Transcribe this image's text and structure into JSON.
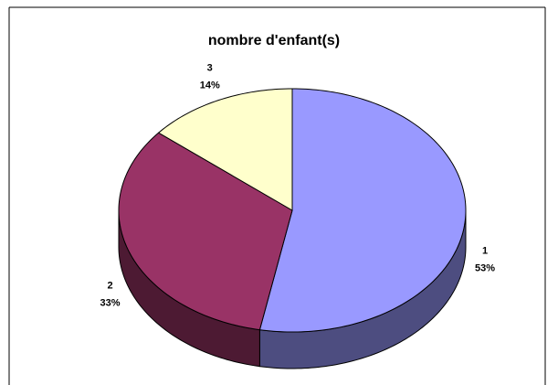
{
  "chart_data": {
    "type": "pie",
    "title": "nombre d'enfant(s)",
    "categories": [
      "1",
      "2",
      "3"
    ],
    "values": [
      53,
      33,
      14
    ],
    "value_labels": [
      "53%",
      "33%",
      "14%"
    ],
    "colors": [
      "#9999ff",
      "#993366",
      "#ffffcc"
    ],
    "side_colors": [
      "#4d4d80",
      "#4d1a33",
      "#80806a"
    ]
  }
}
